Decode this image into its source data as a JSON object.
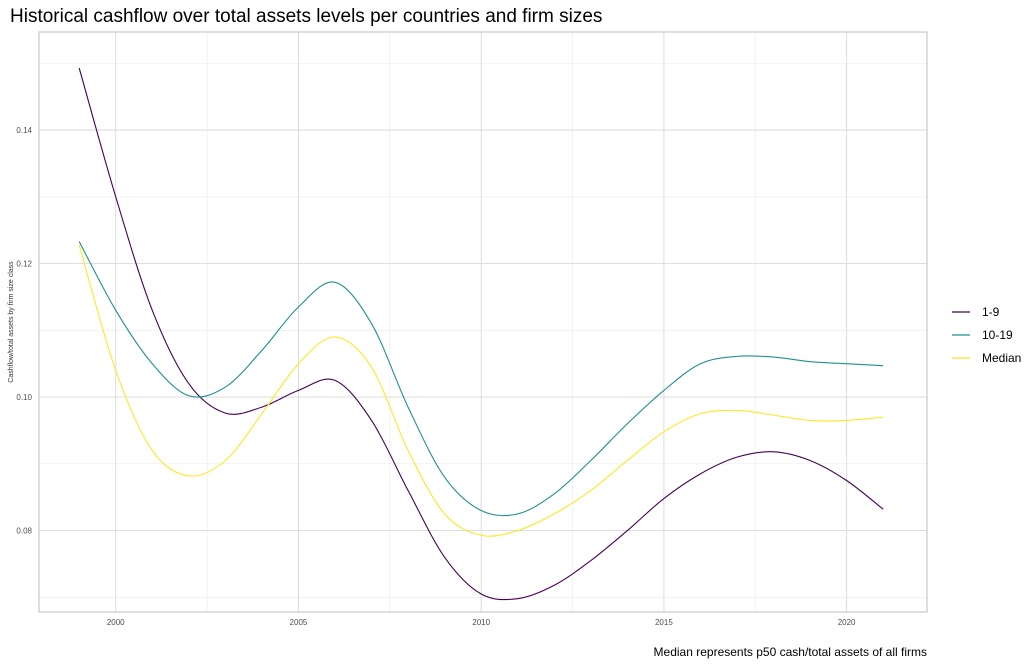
{
  "chart_data": {
    "type": "line",
    "title": "Historical cashflow over total assets levels per countries and firm sizes",
    "xlabel": "",
    "ylabel": "Cashflow/total assets by firm size class",
    "caption": "Median represents p50 cash/total assets of all firms",
    "xlim": [
      1997.9,
      2022.2
    ],
    "ylim": [
      0.0678,
      0.1547
    ],
    "x_ticks": [
      2000,
      2005,
      2010,
      2015,
      2020
    ],
    "y_ticks": [
      0.08,
      0.1,
      0.12,
      0.14
    ],
    "x_tick_labels": [
      "2000",
      "2005",
      "2010",
      "2015",
      "2020"
    ],
    "y_tick_labels": [
      "0.08",
      "0.10",
      "0.12",
      "0.14"
    ],
    "grid": true,
    "legend_position": "right",
    "x": [
      1999,
      2000,
      2001,
      2002,
      2003,
      2004,
      2005,
      2006,
      2007,
      2008,
      2009,
      2010,
      2011,
      2012,
      2013,
      2014,
      2015,
      2016,
      2017,
      2018,
      2019,
      2020,
      2021
    ],
    "series": [
      {
        "name": "1-9",
        "color": "#440154",
        "values": [
          0.1493,
          0.13,
          0.113,
          0.102,
          0.0976,
          0.0985,
          0.101,
          0.1025,
          0.0965,
          0.086,
          0.076,
          0.0705,
          0.0698,
          0.0718,
          0.0755,
          0.08,
          0.0848,
          0.0885,
          0.091,
          0.0918,
          0.0905,
          0.0875,
          0.0832
        ]
      },
      {
        "name": "10-19",
        "color": "#21908c",
        "values": [
          0.1233,
          0.113,
          0.105,
          0.1002,
          0.1015,
          0.107,
          0.1135,
          0.1172,
          0.111,
          0.0985,
          0.088,
          0.083,
          0.0825,
          0.0855,
          0.0905,
          0.096,
          0.101,
          0.105,
          0.1061,
          0.106,
          0.1053,
          0.105,
          0.1047
        ]
      },
      {
        "name": "Median",
        "color": "#fde725",
        "values": [
          0.1228,
          0.104,
          0.092,
          0.0882,
          0.0905,
          0.0975,
          0.105,
          0.109,
          0.1045,
          0.092,
          0.0825,
          0.0793,
          0.08,
          0.0825,
          0.086,
          0.0905,
          0.0948,
          0.0975,
          0.098,
          0.0973,
          0.0965,
          0.0965,
          0.097
        ]
      }
    ]
  }
}
